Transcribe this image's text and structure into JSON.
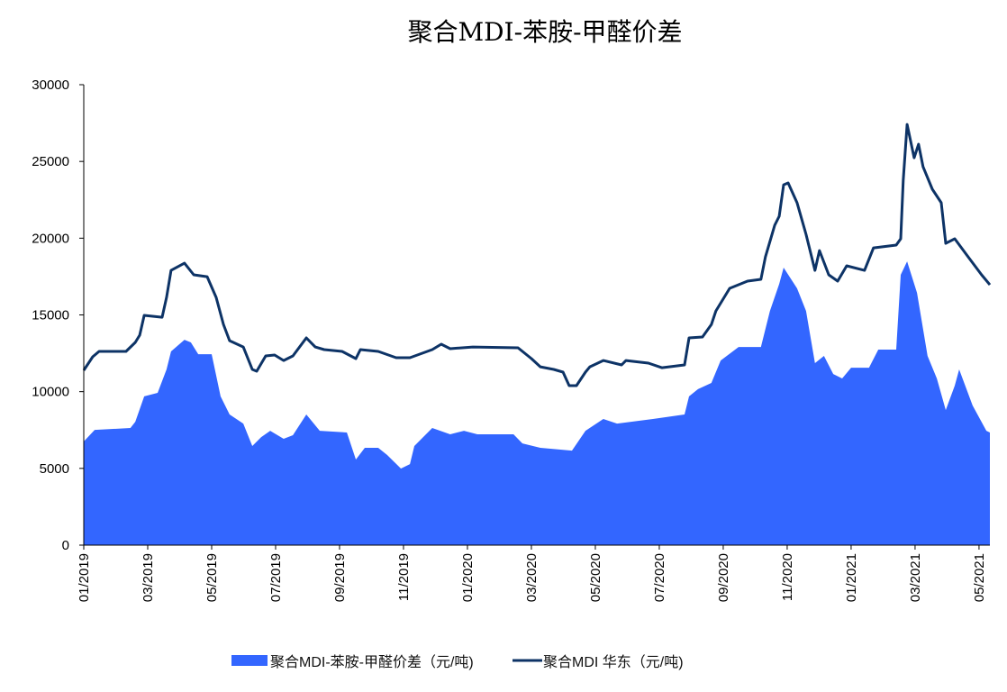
{
  "chart_data": {
    "type": "area+line",
    "title": "聚合MDI-苯胺-甲醛价差",
    "xlabel": "",
    "ylabel": "",
    "ylim": [
      0,
      30000
    ],
    "yticks": [
      0,
      5000,
      10000,
      15000,
      20000,
      25000,
      30000
    ],
    "x_unit": "months since 01/2019",
    "xlim": [
      0,
      28.34
    ],
    "xticks": [
      {
        "m": 0,
        "label": "01/2019"
      },
      {
        "m": 2,
        "label": "03/2019"
      },
      {
        "m": 4,
        "label": "05/2019"
      },
      {
        "m": 6,
        "label": "07/2019"
      },
      {
        "m": 8,
        "label": "09/2019"
      },
      {
        "m": 10,
        "label": "11/2019"
      },
      {
        "m": 12,
        "label": "01/2020"
      },
      {
        "m": 14,
        "label": "03/2020"
      },
      {
        "m": 16,
        "label": "05/2020"
      },
      {
        "m": 18,
        "label": "07/2020"
      },
      {
        "m": 20,
        "label": "09/2020"
      },
      {
        "m": 22,
        "label": "11/2020"
      },
      {
        "m": 24,
        "label": "01/2021"
      },
      {
        "m": 26,
        "label": "03/2021"
      },
      {
        "m": 28,
        "label": "05/2021"
      }
    ],
    "legend_position": "bottom",
    "series": [
      {
        "name": "聚合MDI-苯胺-甲醛价差（元/吨)",
        "type": "area",
        "color": "#3366ff",
        "points": [
          [
            0,
            6750
          ],
          [
            0.34,
            7510
          ],
          [
            1.46,
            7630
          ],
          [
            1.61,
            8040
          ],
          [
            1.89,
            9690
          ],
          [
            2.31,
            9920
          ],
          [
            2.59,
            11450
          ],
          [
            2.73,
            12620
          ],
          [
            3.15,
            13380
          ],
          [
            3.35,
            13210
          ],
          [
            3.58,
            12440
          ],
          [
            4.0,
            12440
          ],
          [
            4.28,
            9690
          ],
          [
            4.56,
            8510
          ],
          [
            4.99,
            7920
          ],
          [
            5.27,
            6460
          ],
          [
            5.55,
            7040
          ],
          [
            5.83,
            7450
          ],
          [
            6.25,
            6930
          ],
          [
            6.54,
            7160
          ],
          [
            6.96,
            8510
          ],
          [
            7.38,
            7450
          ],
          [
            8.23,
            7340
          ],
          [
            8.51,
            5580
          ],
          [
            8.79,
            6340
          ],
          [
            9.21,
            6340
          ],
          [
            9.49,
            5870
          ],
          [
            9.92,
            4990
          ],
          [
            10.2,
            5280
          ],
          [
            10.34,
            6460
          ],
          [
            10.9,
            7630
          ],
          [
            11.46,
            7220
          ],
          [
            11.89,
            7450
          ],
          [
            12.31,
            7220
          ],
          [
            13.44,
            7220
          ],
          [
            13.72,
            6630
          ],
          [
            14.28,
            6340
          ],
          [
            15.27,
            6160
          ],
          [
            15.69,
            7450
          ],
          [
            16.25,
            8220
          ],
          [
            16.68,
            7920
          ],
          [
            17.8,
            8220
          ],
          [
            18.79,
            8510
          ],
          [
            18.93,
            9690
          ],
          [
            19.21,
            10160
          ],
          [
            19.63,
            10570
          ],
          [
            19.92,
            12030
          ],
          [
            20.48,
            12910
          ],
          [
            21.18,
            12910
          ],
          [
            21.46,
            15260
          ],
          [
            21.75,
            17020
          ],
          [
            21.89,
            18080
          ],
          [
            22.31,
            16730
          ],
          [
            22.59,
            15260
          ],
          [
            22.87,
            11860
          ],
          [
            23.15,
            12330
          ],
          [
            23.44,
            11150
          ],
          [
            23.72,
            10860
          ],
          [
            24.0,
            11560
          ],
          [
            24.56,
            11560
          ],
          [
            24.85,
            12740
          ],
          [
            25.41,
            12740
          ],
          [
            25.55,
            17610
          ],
          [
            25.75,
            18490
          ],
          [
            26.06,
            16440
          ],
          [
            26.39,
            12330
          ],
          [
            26.68,
            10860
          ],
          [
            26.96,
            8800
          ],
          [
            27.24,
            10390
          ],
          [
            27.38,
            11450
          ],
          [
            27.8,
            9100
          ],
          [
            28.23,
            7450
          ],
          [
            28.34,
            7340
          ]
        ]
      },
      {
        "name": "聚合MDI 华东（元/吨)",
        "type": "line",
        "color": "#0d3366",
        "points": [
          [
            0,
            11390
          ],
          [
            0.28,
            12270
          ],
          [
            0.48,
            12620
          ],
          [
            1.32,
            12620
          ],
          [
            1.61,
            13210
          ],
          [
            1.75,
            13680
          ],
          [
            1.89,
            14970
          ],
          [
            2.45,
            14850
          ],
          [
            2.59,
            16140
          ],
          [
            2.73,
            17900
          ],
          [
            3.15,
            18370
          ],
          [
            3.44,
            17610
          ],
          [
            3.86,
            17490
          ],
          [
            4.14,
            16140
          ],
          [
            4.37,
            14380
          ],
          [
            4.56,
            13320
          ],
          [
            4.99,
            12910
          ],
          [
            5.27,
            11450
          ],
          [
            5.41,
            11330
          ],
          [
            5.69,
            12330
          ],
          [
            5.97,
            12390
          ],
          [
            6.25,
            12030
          ],
          [
            6.54,
            12330
          ],
          [
            6.96,
            13500
          ],
          [
            7.24,
            12910
          ],
          [
            7.52,
            12740
          ],
          [
            8.08,
            12620
          ],
          [
            8.51,
            12150
          ],
          [
            8.65,
            12740
          ],
          [
            9.21,
            12620
          ],
          [
            9.77,
            12210
          ],
          [
            10.2,
            12210
          ],
          [
            10.9,
            12740
          ],
          [
            11.18,
            13090
          ],
          [
            11.46,
            12800
          ],
          [
            12.17,
            12910
          ],
          [
            13.58,
            12860
          ],
          [
            14.0,
            12150
          ],
          [
            14.28,
            11620
          ],
          [
            14.7,
            11450
          ],
          [
            14.99,
            11270
          ],
          [
            15.18,
            10390
          ],
          [
            15.41,
            10390
          ],
          [
            15.69,
            11270
          ],
          [
            15.83,
            11620
          ],
          [
            16.25,
            12030
          ],
          [
            16.82,
            11740
          ],
          [
            16.96,
            12030
          ],
          [
            17.66,
            11860
          ],
          [
            18.08,
            11560
          ],
          [
            18.79,
            11740
          ],
          [
            18.93,
            13500
          ],
          [
            19.35,
            13560
          ],
          [
            19.63,
            14380
          ],
          [
            19.77,
            15260
          ],
          [
            20.2,
            16730
          ],
          [
            20.76,
            17200
          ],
          [
            21.18,
            17320
          ],
          [
            21.32,
            18780
          ],
          [
            21.61,
            20840
          ],
          [
            21.75,
            21430
          ],
          [
            21.89,
            23480
          ],
          [
            22.03,
            23600
          ],
          [
            22.31,
            22310
          ],
          [
            22.59,
            20250
          ],
          [
            22.87,
            17900
          ],
          [
            23.01,
            19190
          ],
          [
            23.3,
            17610
          ],
          [
            23.58,
            17200
          ],
          [
            23.86,
            18200
          ],
          [
            24.42,
            17900
          ],
          [
            24.7,
            19370
          ],
          [
            25.41,
            19550
          ],
          [
            25.55,
            19960
          ],
          [
            25.63,
            23770
          ],
          [
            25.75,
            27410
          ],
          [
            25.97,
            25240
          ],
          [
            26.11,
            26120
          ],
          [
            26.25,
            24650
          ],
          [
            26.54,
            23190
          ],
          [
            26.82,
            22310
          ],
          [
            26.96,
            19660
          ],
          [
            27.24,
            19960
          ],
          [
            27.66,
            18780
          ],
          [
            28.08,
            17610
          ],
          [
            28.34,
            16960
          ]
        ]
      }
    ]
  }
}
